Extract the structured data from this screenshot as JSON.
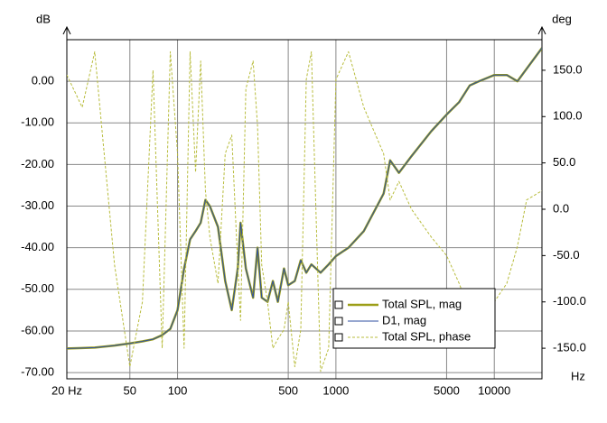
{
  "chart_data": {
    "type": "line",
    "y_label": "dB",
    "y2_label": "deg",
    "x_label": "Hz",
    "log_x": true,
    "grid": true,
    "legend": "lower-right",
    "x": [
      20,
      25,
      30,
      40,
      50,
      60,
      70,
      80,
      90,
      100,
      110,
      120,
      130,
      140,
      150,
      160,
      180,
      200,
      220,
      240,
      250,
      270,
      300,
      320,
      340,
      370,
      400,
      430,
      470,
      500,
      550,
      600,
      650,
      700,
      800,
      900,
      1000,
      1200,
      1500,
      2000,
      2200,
      2500,
      3000,
      4000,
      5000,
      6000,
      7000,
      8000,
      10000,
      12000,
      14000,
      16000,
      20000
    ],
    "series": [
      {
        "name": "Total SPL, mag",
        "color": "#9c9e17",
        "width": 2.5,
        "values": [
          -64.2,
          -64.1,
          -64,
          -63.5,
          -63,
          -62.5,
          -62,
          -61,
          -59.5,
          -55,
          -45,
          -38,
          -36,
          -34,
          -28.5,
          -30,
          -35,
          -48,
          -55,
          -45,
          -34,
          -45,
          -52,
          -40,
          -52,
          -53,
          -48,
          -53,
          -45,
          -49,
          -48,
          -43,
          -46,
          -44,
          -46,
          -44,
          -42,
          -40,
          -36,
          -27,
          -19,
          -22,
          -18,
          -12,
          -8,
          -5,
          -1,
          0,
          1.5,
          1.5,
          0,
          3,
          8
        ]
      },
      {
        "name": "D1, mag",
        "color": "#2f4fa0",
        "width": 1,
        "values": [
          -64.2,
          -64.1,
          -64,
          -63.5,
          -63,
          -62.5,
          -62,
          -61,
          -59.5,
          -55,
          -45,
          -38,
          -36,
          -34,
          -28.5,
          -30,
          -35,
          -48,
          -55,
          -45,
          -34,
          -45,
          -52,
          -40,
          -52,
          -53,
          -48,
          -53,
          -45,
          -49,
          -48,
          -43,
          -46,
          -44,
          -46,
          -44,
          -42,
          -40,
          -36,
          -27,
          -19,
          -22,
          -18,
          -12,
          -8,
          -5,
          -1,
          0,
          1.5,
          1.5,
          0,
          3,
          8
        ]
      },
      {
        "name": "Total SPL, phase",
        "color": "#b8bc3c",
        "width": 1,
        "dashed": true,
        "axis": "y2",
        "values": [
          145,
          110,
          170,
          -60,
          -170,
          -100,
          150,
          -150,
          170,
          60,
          -150,
          170,
          40,
          160,
          20,
          -30,
          -80,
          60,
          80,
          -60,
          -120,
          130,
          160,
          90,
          -60,
          -100,
          -150,
          -140,
          -130,
          -100,
          -170,
          -130,
          140,
          170,
          -175,
          -150,
          140,
          170,
          110,
          60,
          10,
          30,
          0,
          -30,
          -50,
          -80,
          -110,
          -110,
          -100,
          -80,
          -40,
          10,
          20
        ]
      }
    ],
    "xlim": [
      20,
      20000
    ],
    "xticks": [
      {
        "value": 20,
        "label": "20 Hz"
      },
      50,
      100,
      500,
      1000,
      5000,
      10000
    ],
    "ylim": [
      -71.5,
      10
    ],
    "yticks": [
      {
        "value": 0,
        "label": "0.00"
      },
      {
        "value": -10,
        "label": "-10.00"
      },
      {
        "value": -20,
        "label": "-20.00"
      },
      {
        "value": -30,
        "label": "-30.00"
      },
      {
        "value": -40,
        "label": "-40.00"
      },
      {
        "value": -50,
        "label": "-50.00"
      },
      {
        "value": -60,
        "label": "-60.00"
      },
      {
        "value": -70,
        "label": "-70.00"
      }
    ],
    "y2lim": [
      -183,
      183
    ],
    "y2ticks": [
      {
        "value": 150,
        "label": "150.0"
      },
      {
        "value": 100,
        "label": "100.0"
      },
      {
        "value": 50,
        "label": "50.0"
      },
      {
        "value": 0,
        "label": "0.0"
      },
      {
        "value": -50,
        "label": "-50.0"
      },
      {
        "value": -100,
        "label": "-100.0"
      },
      {
        "value": -150,
        "label": "-150.0"
      }
    ]
  }
}
